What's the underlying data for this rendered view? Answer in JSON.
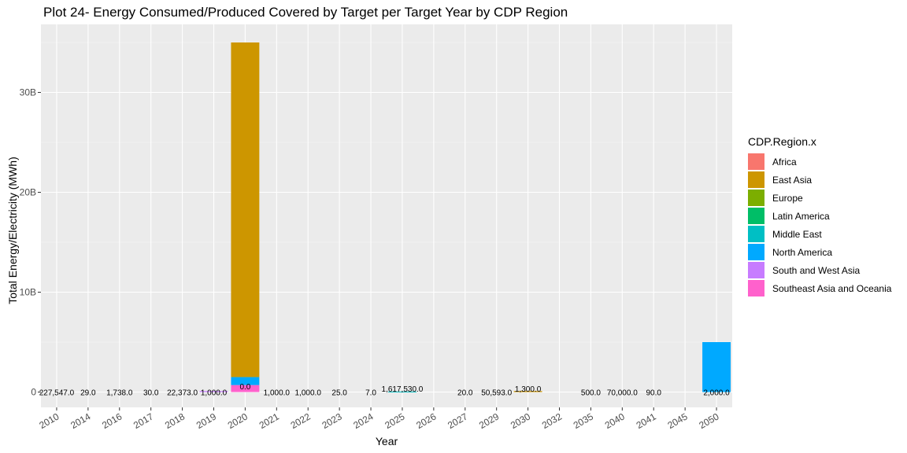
{
  "chart_data": {
    "type": "bar",
    "stacked": true,
    "title": "Plot 24- Energy Consumed/Produced Covered by Target per Target Year by CDP Region",
    "xlabel": "Year",
    "ylabel": "Total Energy/Electricity (MWh)",
    "ylim": [
      0,
      36750000000
    ],
    "yticks": [
      {
        "value": 0,
        "label": "0"
      },
      {
        "value": 10000000000,
        "label": "10B"
      },
      {
        "value": 20000000000,
        "label": "20B"
      },
      {
        "value": 30000000000,
        "label": "30B"
      }
    ],
    "grid": true,
    "legend_title": "CDP.Region.x",
    "legend_position": "right",
    "categories": [
      "2010",
      "2014",
      "2016",
      "2017",
      "2018",
      "2019",
      "2020",
      "2021",
      "2022",
      "2023",
      "2024",
      "2025",
      "2026",
      "2027",
      "2029",
      "2030",
      "2032",
      "2035",
      "2040",
      "2041",
      "2045",
      "2050"
    ],
    "series": [
      {
        "name": "Africa",
        "color": "#F8766D",
        "values": [
          0,
          0,
          0,
          0,
          0,
          0,
          0,
          0,
          0,
          0,
          0,
          0,
          0,
          0,
          0,
          0,
          0,
          0,
          0,
          0,
          0,
          0
        ]
      },
      {
        "name": "East Asia",
        "color": "#CD9600",
        "values": [
          0,
          0,
          0,
          0,
          0,
          0,
          33500000000,
          0,
          0,
          0,
          0,
          0,
          0,
          0,
          0,
          100000000,
          0,
          0,
          0,
          0,
          0,
          0
        ]
      },
      {
        "name": "Europe",
        "color": "#7CAE00",
        "values": [
          0,
          0,
          0,
          0,
          0,
          0,
          0,
          0,
          0,
          0,
          0,
          0,
          0,
          0,
          0,
          0,
          0,
          0,
          0,
          0,
          0,
          0
        ]
      },
      {
        "name": "Latin America",
        "color": "#00BE67",
        "values": [
          0,
          0,
          0,
          0,
          0,
          0,
          0,
          0,
          0,
          0,
          0,
          0,
          0,
          0,
          0,
          0,
          0,
          0,
          0,
          0,
          0,
          0
        ]
      },
      {
        "name": "Middle East",
        "color": "#00BFC4",
        "values": [
          0,
          0,
          0,
          0,
          0,
          0,
          0,
          0,
          0,
          0,
          0,
          50000000,
          0,
          0,
          0,
          0,
          0,
          0,
          0,
          0,
          0,
          0
        ]
      },
      {
        "name": "North America",
        "color": "#00A9FF",
        "values": [
          0,
          0,
          0,
          0,
          0,
          0,
          800000000,
          0,
          0,
          0,
          0,
          0,
          0,
          0,
          0,
          0,
          0,
          0,
          0,
          0,
          0,
          5000000000
        ]
      },
      {
        "name": "South and West Asia",
        "color": "#C77CFF",
        "values": [
          0,
          0,
          0,
          0,
          0,
          100000000,
          0,
          0,
          0,
          0,
          0,
          0,
          0,
          0,
          0,
          0,
          0,
          0,
          0,
          0,
          0,
          0
        ]
      },
      {
        "name": "Southeast Asia and Oceania",
        "color": "#FF61CC",
        "values": [
          0,
          0,
          0,
          0,
          0,
          0,
          700000000,
          0,
          0,
          0,
          0,
          0,
          0,
          0,
          0,
          0,
          0,
          0,
          0,
          0,
          0,
          0
        ]
      }
    ],
    "bar_labels": [
      {
        "category": "2010",
        "text": "227,547.0"
      },
      {
        "category": "2014",
        "text": "29.0"
      },
      {
        "category": "2016",
        "text": "1,738.0"
      },
      {
        "category": "2017",
        "text": "30.0"
      },
      {
        "category": "2018",
        "text": "22,373.0"
      },
      {
        "category": "2019",
        "text": "1,000.0"
      },
      {
        "category": "2020",
        "text": "0.0"
      },
      {
        "category": "2021",
        "text": "1,000.0"
      },
      {
        "category": "2022",
        "text": "1,000.0"
      },
      {
        "category": "2023",
        "text": "25.0"
      },
      {
        "category": "2024",
        "text": "7.0"
      },
      {
        "category": "2025",
        "text": "1,617,530.0"
      },
      {
        "category": "2027",
        "text": "20.0"
      },
      {
        "category": "2029",
        "text": "50,593.0"
      },
      {
        "category": "2030",
        "text": "1,300.0"
      },
      {
        "category": "2035",
        "text": "500.0"
      },
      {
        "category": "2040",
        "text": "70,000.0"
      },
      {
        "category": "2041",
        "text": "90.0"
      },
      {
        "category": "2050",
        "text": "2,000.0"
      }
    ]
  }
}
